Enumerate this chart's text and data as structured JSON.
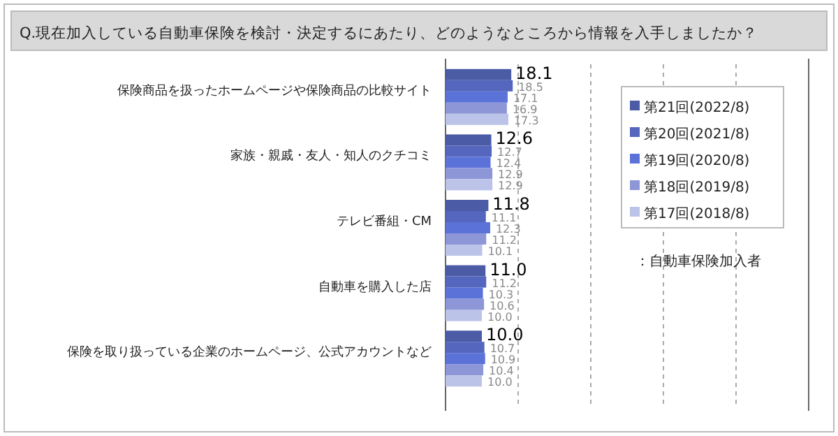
{
  "chart_data": {
    "type": "bar",
    "orientation": "horizontal",
    "title": "Q.現在加入している自動車保険を検討・決定するにあたり、どのようなところから情報を入手しましたか？",
    "categories": [
      "保険商品を扱ったホームページや保険商品の比較サイト",
      "家族・親戚・友人・知人のクチコミ",
      "テレビ番組・CM",
      "自動車を購入した店",
      "保険を取り扱っている企業のホームページ、公式アカウントなど"
    ],
    "series": [
      {
        "name": "第21回(2022/8)",
        "color": "#4c5ba6",
        "values": [
          18.1,
          12.6,
          11.8,
          11.0,
          10.0
        ],
        "value_labels": [
          "18.1",
          "12.6",
          "11.8",
          "11.0",
          "10.0"
        ]
      },
      {
        "name": "第20回(2021/8)",
        "color": "#5466bd",
        "values": [
          18.5,
          12.7,
          11.1,
          11.2,
          10.7
        ],
        "value_labels": [
          "18.5",
          "12.7",
          "11.1",
          "11.2",
          "10.7"
        ]
      },
      {
        "name": "第19回(2020/8)",
        "color": "#5b72d9",
        "values": [
          17.1,
          12.4,
          12.3,
          10.3,
          10.9
        ],
        "value_labels": [
          "17.1",
          "12.4",
          "12.3",
          "10.3",
          "10.9"
        ]
      },
      {
        "name": "第18回(2019/8)",
        "color": "#8d97d8",
        "values": [
          16.9,
          12.9,
          11.2,
          10.6,
          10.4
        ],
        "value_labels": [
          "16.9",
          "12.9",
          "11.2",
          "10.6",
          "10.4"
        ]
      },
      {
        "name": "第17回(2018/8)",
        "color": "#bcc3e8",
        "values": [
          17.3,
          12.9,
          10.1,
          10.0,
          10.0
        ],
        "value_labels": [
          "17.3",
          "12.9",
          "10.1",
          "10.0",
          "10.0"
        ]
      }
    ],
    "xlim": [
      0,
      100
    ],
    "xticks": [
      {
        "value": 20,
        "label": null
      },
      {
        "value": 40,
        "label": null
      },
      {
        "value": 60,
        "label": null
      },
      {
        "value": 80,
        "label": null
      }
    ],
    "grid": "x",
    "legend": "right",
    "annotations": [
      "：自動車保険加入者"
    ]
  }
}
